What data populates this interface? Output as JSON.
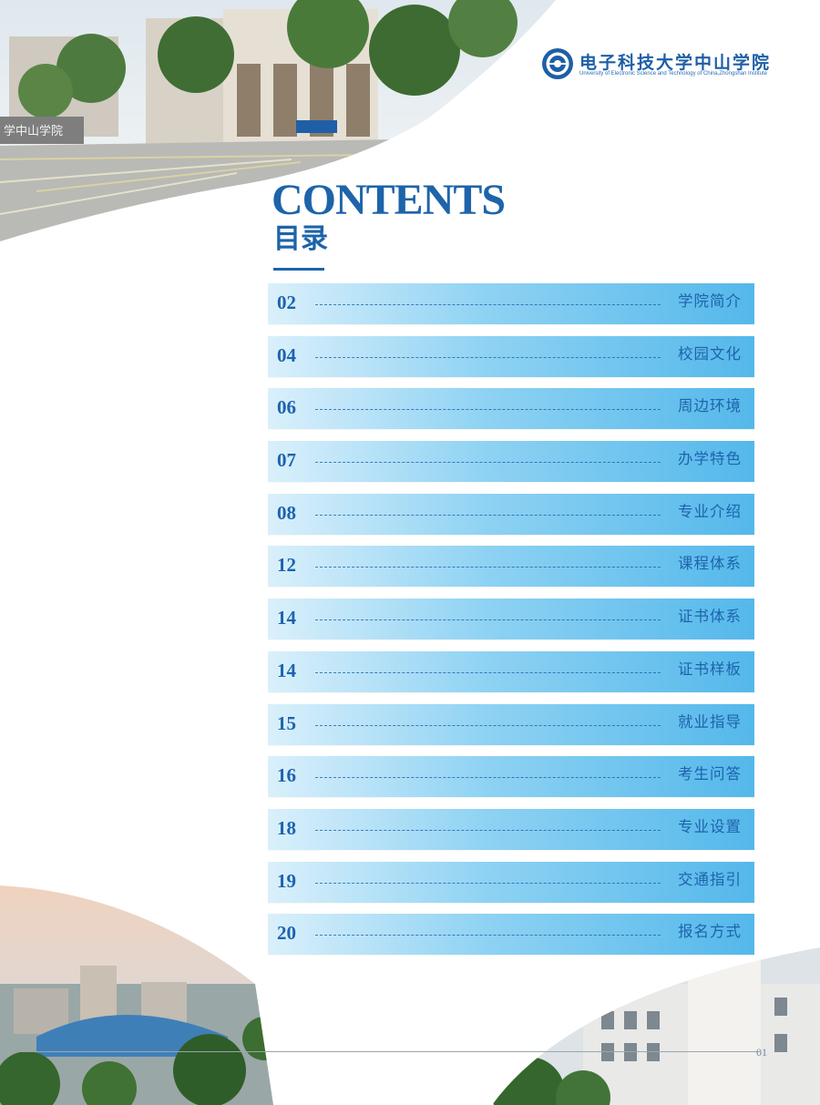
{
  "logo": {
    "name": "电子科技大学中山学院",
    "subtitle": "University of Electronic Science and Technology of China,Zhongshan Institute",
    "emblem_icon": "university-emblem-icon"
  },
  "title": {
    "english": "CONTENTS",
    "chinese": "目录"
  },
  "toc": [
    {
      "page": "02",
      "label": "学院简介"
    },
    {
      "page": "04",
      "label": "校园文化"
    },
    {
      "page": "06",
      "label": "周边环境"
    },
    {
      "page": "07",
      "label": "办学特色"
    },
    {
      "page": "08",
      "label": "专业介绍"
    },
    {
      "page": "12",
      "label": "课程体系"
    },
    {
      "page": "14",
      "label": "证书体系"
    },
    {
      "page": "14",
      "label": "证书样板"
    },
    {
      "page": "15",
      "label": "就业指导"
    },
    {
      "page": "16",
      "label": "考生问答"
    },
    {
      "page": "18",
      "label": "专业设置"
    },
    {
      "page": "19",
      "label": "交通指引"
    },
    {
      "page": "20",
      "label": "报名方式"
    }
  ],
  "page_number": "01",
  "colors": {
    "primary_blue": "#1d64aa",
    "row_gradient_start": "#daf0fb",
    "row_gradient_end": "#54b8ea"
  }
}
